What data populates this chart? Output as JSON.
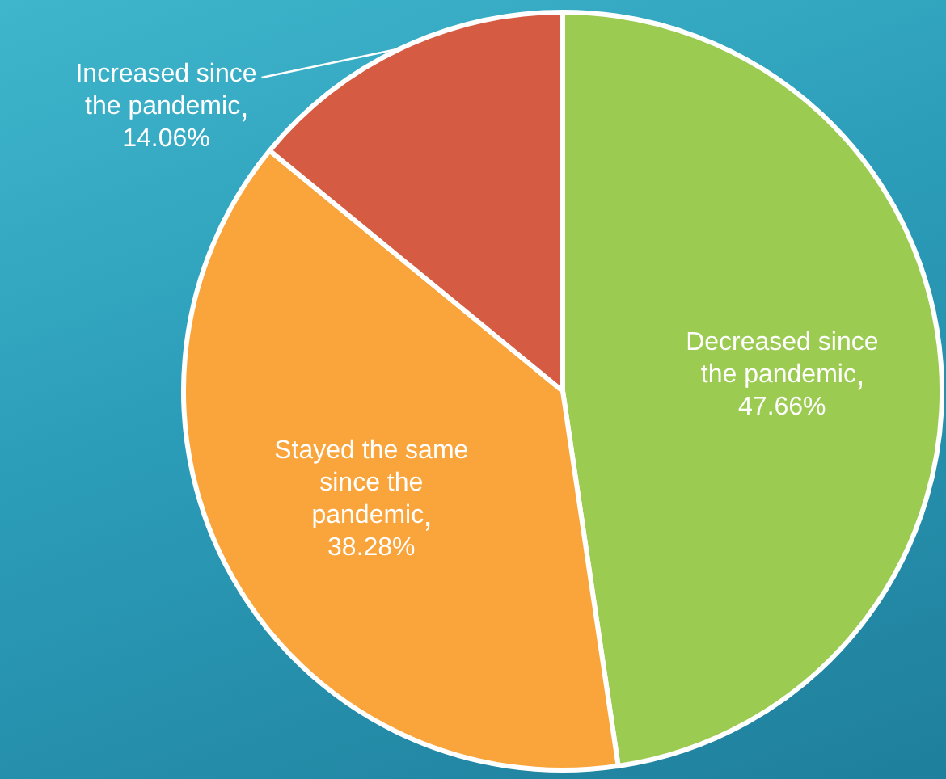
{
  "chart_data": {
    "type": "pie",
    "categories": [
      "Decreased since the pandemic",
      "Stayed the same since the pandemic",
      "Increased since the pandemic"
    ],
    "values": [
      47.66,
      38.28,
      14.06
    ],
    "colors": [
      "#9bcb50",
      "#f9a53b",
      "#d55b42"
    ],
    "value_labels": [
      "47.66%",
      "38.28%",
      "14.06%"
    ],
    "legend": false
  }
}
